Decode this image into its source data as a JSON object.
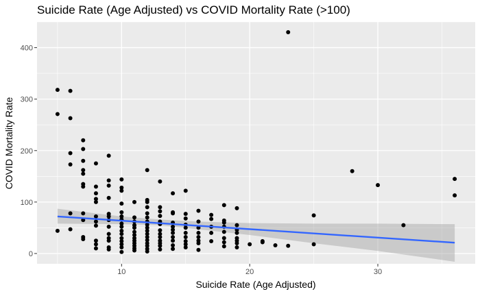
{
  "chart_data": {
    "type": "scatter",
    "title": "Suicide Rate (Age Adjusted) vs COVID Mortality Rate (>100)",
    "xlabel": "Suicide Rate (Age Adjusted)",
    "ylabel": "COVID Mortality Rate",
    "xlim": [
      3.4,
      37.6
    ],
    "ylim": [
      -20,
      450
    ],
    "x_ticks": [
      10,
      20,
      30
    ],
    "y_ticks": [
      0,
      100,
      200,
      300,
      400
    ],
    "grid": true,
    "legend": "none",
    "colors": {
      "panel": "#ebebeb",
      "grid_major": "#ffffff",
      "points": "#000000",
      "trend_line": "#3366ff",
      "confidence_band": "#999999"
    },
    "points": [
      [
        5,
        318
      ],
      [
        5,
        271
      ],
      [
        5,
        44
      ],
      [
        6,
        316
      ],
      [
        6,
        263
      ],
      [
        6,
        195
      ],
      [
        6,
        173
      ],
      [
        6,
        78
      ],
      [
        6,
        47
      ],
      [
        7,
        220
      ],
      [
        7,
        203
      ],
      [
        7,
        180
      ],
      [
        7,
        162
      ],
      [
        7,
        155
      ],
      [
        7,
        135
      ],
      [
        7,
        130
      ],
      [
        7,
        78
      ],
      [
        7,
        65
      ],
      [
        7,
        32
      ],
      [
        7,
        28
      ],
      [
        8,
        175
      ],
      [
        8,
        130
      ],
      [
        8,
        117
      ],
      [
        8,
        106
      ],
      [
        8,
        100
      ],
      [
        8,
        72
      ],
      [
        8,
        62
      ],
      [
        8,
        54
      ],
      [
        8,
        25
      ],
      [
        8,
        18
      ],
      [
        8,
        10
      ],
      [
        9,
        190
      ],
      [
        9,
        142
      ],
      [
        9,
        132
      ],
      [
        9,
        108
      ],
      [
        9,
        77
      ],
      [
        9,
        72
      ],
      [
        9,
        65
      ],
      [
        9,
        52
      ],
      [
        9,
        38
      ],
      [
        9,
        30
      ],
      [
        9,
        25
      ],
      [
        9,
        12
      ],
      [
        9,
        8
      ],
      [
        10,
        144
      ],
      [
        10,
        128
      ],
      [
        10,
        122
      ],
      [
        10,
        97
      ],
      [
        10,
        80
      ],
      [
        10,
        72
      ],
      [
        10,
        66
      ],
      [
        10,
        58
      ],
      [
        10,
        52
      ],
      [
        10,
        44
      ],
      [
        10,
        38
      ],
      [
        10,
        30
      ],
      [
        10,
        24
      ],
      [
        10,
        18
      ],
      [
        10,
        12
      ],
      [
        10,
        3
      ],
      [
        11,
        100
      ],
      [
        11,
        70
      ],
      [
        11,
        62
      ],
      [
        11,
        55
      ],
      [
        11,
        50
      ],
      [
        11,
        42
      ],
      [
        11,
        36
      ],
      [
        11,
        30
      ],
      [
        11,
        25
      ],
      [
        11,
        20
      ],
      [
        11,
        15
      ],
      [
        11,
        10
      ],
      [
        11,
        6
      ],
      [
        12,
        162
      ],
      [
        12,
        104
      ],
      [
        12,
        100
      ],
      [
        12,
        90
      ],
      [
        12,
        78
      ],
      [
        12,
        70
      ],
      [
        12,
        62
      ],
      [
        12,
        56
      ],
      [
        12,
        50
      ],
      [
        12,
        44
      ],
      [
        12,
        38
      ],
      [
        12,
        32
      ],
      [
        12,
        26
      ],
      [
        12,
        20
      ],
      [
        12,
        15
      ],
      [
        12,
        9
      ],
      [
        12,
        4
      ],
      [
        13,
        140
      ],
      [
        13,
        90
      ],
      [
        13,
        82
      ],
      [
        13,
        73
      ],
      [
        13,
        62
      ],
      [
        13,
        57
      ],
      [
        13,
        45
      ],
      [
        13,
        38
      ],
      [
        13,
        32
      ],
      [
        13,
        25
      ],
      [
        13,
        20
      ],
      [
        13,
        15
      ],
      [
        13,
        8
      ],
      [
        14,
        117
      ],
      [
        14,
        80
      ],
      [
        14,
        78
      ],
      [
        14,
        60
      ],
      [
        14,
        52
      ],
      [
        14,
        46
      ],
      [
        14,
        40
      ],
      [
        14,
        32
      ],
      [
        14,
        25
      ],
      [
        14,
        16
      ],
      [
        14,
        9
      ],
      [
        15,
        122
      ],
      [
        15,
        77
      ],
      [
        15,
        68
      ],
      [
        15,
        56
      ],
      [
        15,
        50
      ],
      [
        15,
        40
      ],
      [
        15,
        32
      ],
      [
        15,
        24
      ],
      [
        15,
        18
      ],
      [
        15,
        12
      ],
      [
        16,
        83
      ],
      [
        16,
        62
      ],
      [
        16,
        50
      ],
      [
        16,
        40
      ],
      [
        16,
        32
      ],
      [
        16,
        25
      ],
      [
        16,
        20
      ],
      [
        16,
        7
      ],
      [
        17,
        75
      ],
      [
        17,
        67
      ],
      [
        17,
        52
      ],
      [
        17,
        40
      ],
      [
        17,
        24
      ],
      [
        18,
        94
      ],
      [
        18,
        64
      ],
      [
        18,
        60
      ],
      [
        18,
        52
      ],
      [
        18,
        42
      ],
      [
        18,
        30
      ],
      [
        18,
        22
      ],
      [
        18,
        14
      ],
      [
        19,
        88
      ],
      [
        19,
        55
      ],
      [
        19,
        46
      ],
      [
        19,
        40
      ],
      [
        19,
        30
      ],
      [
        19,
        25
      ],
      [
        19,
        20
      ],
      [
        19,
        12
      ],
      [
        20,
        18
      ],
      [
        21,
        22
      ],
      [
        21,
        24
      ],
      [
        22,
        16
      ],
      [
        23,
        430
      ],
      [
        23,
        15
      ],
      [
        25,
        74
      ],
      [
        25,
        18
      ],
      [
        28,
        160
      ],
      [
        30,
        133
      ],
      [
        32,
        55
      ],
      [
        36,
        145
      ],
      [
        36,
        113
      ]
    ],
    "trend_line": {
      "x": [
        5,
        36
      ],
      "y": [
        72,
        21
      ]
    },
    "confidence_band": [
      {
        "x": 5,
        "lower": 58,
        "upper": 87
      },
      {
        "x": 10,
        "lower": 57,
        "upper": 72
      },
      {
        "x": 13,
        "lower": 55,
        "upper": 66
      },
      {
        "x": 16,
        "lower": 47,
        "upper": 62
      },
      {
        "x": 20,
        "lower": 36,
        "upper": 59
      },
      {
        "x": 25,
        "lower": 20,
        "upper": 58
      },
      {
        "x": 30,
        "lower": 5,
        "upper": 58
      },
      {
        "x": 36,
        "lower": -16,
        "upper": 57
      }
    ]
  }
}
